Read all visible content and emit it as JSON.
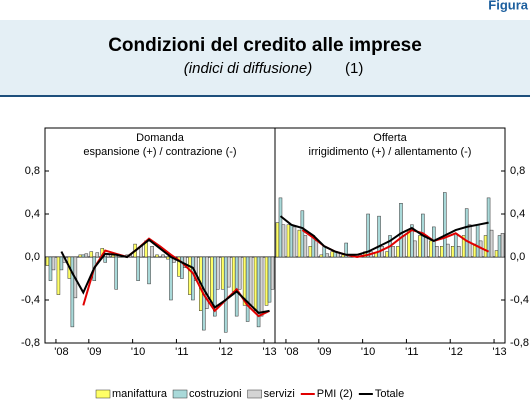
{
  "header": {
    "figure_label": "Figura",
    "title": "Condizioni del credito alle imprese",
    "subtitle": "(indici di diffusione)",
    "note": "(1)"
  },
  "chart_data": [
    {
      "type": "bar",
      "panel_title": "Domanda",
      "panel_subtitle": "espansione (+) / contrazione (-)",
      "categories": [
        null,
        "'08",
        null,
        null,
        "'09",
        null,
        null,
        null,
        "'10",
        null,
        null,
        null,
        "'11",
        null,
        null,
        null,
        "'12",
        null,
        null,
        null,
        "'13"
      ],
      "ylim": [
        -0.8,
        1.2
      ],
      "yticks": [
        {
          "value": -0.8,
          "label": "-0,8"
        },
        {
          "value": -0.4,
          "label": "-0,4"
        },
        {
          "value": 0,
          "label": "0,0"
        },
        {
          "value": 0.4,
          "label": "0,4"
        },
        {
          "value": 0.8,
          "label": "0,8"
        }
      ],
      "axis_side": "left",
      "series": [
        {
          "name": "manifattura",
          "type": "bar",
          "color": "#ffff66",
          "values": [
            -0.08,
            -0.35,
            -0.2,
            0.02,
            0.05,
            0.08,
            0.02,
            0.0,
            0.12,
            0.15,
            0.02,
            -0.02,
            -0.18,
            -0.35,
            -0.5,
            -0.45,
            -0.3,
            -0.32,
            -0.45,
            -0.5,
            -0.45
          ]
        },
        {
          "name": "costruzioni",
          "type": "bar",
          "color": "#a9d9d9",
          "values": [
            -0.22,
            -0.12,
            -0.65,
            0.02,
            -0.22,
            -0.05,
            -0.3,
            0.02,
            -0.22,
            -0.25,
            0.0,
            -0.4,
            -0.2,
            -0.4,
            -0.68,
            -0.55,
            -0.7,
            -0.55,
            -0.6,
            -0.65,
            -0.42
          ]
        },
        {
          "name": "servizi",
          "type": "bar",
          "color": "#d4d4d4",
          "values": [
            -0.12,
            -0.05,
            -0.38,
            0.03,
            0.04,
            0.03,
            0.02,
            0.02,
            0.1,
            0.1,
            0.02,
            -0.05,
            -0.1,
            -0.22,
            -0.48,
            -0.3,
            -0.28,
            -0.3,
            -0.45,
            -0.55,
            -0.3
          ]
        },
        {
          "name": "PMI (2)",
          "type": "line",
          "color": "#e00000",
          "values": [
            null,
            null,
            null,
            -0.45,
            -0.1,
            0.06,
            0.03,
            0.0,
            0.08,
            0.17,
            0.1,
            0.02,
            -0.05,
            -0.15,
            -0.35,
            -0.5,
            -0.4,
            -0.3,
            -0.45,
            -0.55,
            -0.5
          ]
        },
        {
          "name": "Totale",
          "type": "line",
          "color": "#000000",
          "values": [
            null,
            0.05,
            -0.15,
            -0.33,
            -0.1,
            0.03,
            0.02,
            0.0,
            0.08,
            0.16,
            0.08,
            0.0,
            -0.05,
            -0.1,
            -0.3,
            -0.47,
            -0.4,
            -0.32,
            -0.42,
            -0.52,
            -0.5
          ]
        }
      ]
    },
    {
      "type": "bar",
      "panel_title": "Offerta",
      "panel_subtitle": "irrigidimento (+) / allentamento (-)",
      "categories": [
        null,
        "'08",
        null,
        null,
        "'09",
        null,
        null,
        null,
        "'10",
        null,
        null,
        null,
        "'11",
        null,
        null,
        null,
        "'12",
        null,
        null,
        null,
        "'13"
      ],
      "ylim": [
        -0.8,
        1.2
      ],
      "yticks": [
        {
          "value": -0.8,
          "label": "-0,8"
        },
        {
          "value": -0.4,
          "label": "-0,4"
        },
        {
          "value": 0,
          "label": "0,0"
        },
        {
          "value": 0.4,
          "label": "0,4"
        },
        {
          "value": 0.8,
          "label": "0,8"
        }
      ],
      "axis_side": "right",
      "series": [
        {
          "name": "manifattura",
          "type": "bar",
          "color": "#ffff66",
          "values": [
            0.32,
            0.3,
            0.25,
            0.1,
            0.02,
            0.05,
            0.02,
            0.0,
            0.05,
            0.04,
            0.05,
            0.1,
            0.25,
            0.2,
            0.15,
            0.1,
            0.1,
            0.2,
            0.12,
            0.2,
            0.06
          ]
        },
        {
          "name": "costruzioni",
          "type": "bar",
          "color": "#a9d9d9",
          "values": [
            0.55,
            0.3,
            0.43,
            0.2,
            0.1,
            0.05,
            0.13,
            0.0,
            0.4,
            0.38,
            0.2,
            0.5,
            0.3,
            0.4,
            0.28,
            0.6,
            0.22,
            0.45,
            0.3,
            0.55,
            0.2
          ]
        },
        {
          "name": "servizi",
          "type": "bar",
          "color": "#d4d4d4",
          "values": [
            0.3,
            0.28,
            0.2,
            0.15,
            0.03,
            0.04,
            0.02,
            0.02,
            0.05,
            0.1,
            0.1,
            0.2,
            0.15,
            0.2,
            0.1,
            0.12,
            0.1,
            0.3,
            0.15,
            0.25,
            0.22
          ]
        },
        {
          "name": "PMI (2)",
          "type": "line",
          "color": "#e00000",
          "values": [
            null,
            null,
            0.25,
            0.18,
            0.1,
            0.05,
            0.02,
            0.0,
            0.02,
            0.05,
            0.1,
            0.18,
            0.25,
            0.22,
            0.15,
            0.18,
            0.22,
            0.15,
            0.1,
            0.05,
            null
          ]
        },
        {
          "name": "Totale",
          "type": "line",
          "color": "#000000",
          "values": [
            0.38,
            0.3,
            0.27,
            0.2,
            0.1,
            0.05,
            0.02,
            0.02,
            0.05,
            0.1,
            0.15,
            0.22,
            0.27,
            0.2,
            0.15,
            0.2,
            0.25,
            0.28,
            0.3,
            0.32,
            null
          ]
        }
      ]
    }
  ]
}
